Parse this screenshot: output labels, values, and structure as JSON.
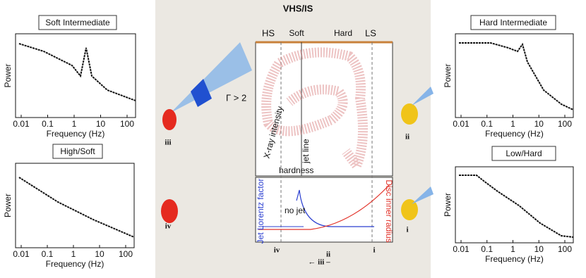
{
  "panels": [
    {
      "title": "Soft Intermediate",
      "y_label": "Power",
      "x_label": "Frequency (Hz)",
      "x_ticks": [
        "0.01",
        "0.1",
        "1",
        "10",
        "100"
      ]
    },
    {
      "title": "High/Soft",
      "y_label": "Power",
      "x_label": "Frequency (Hz)",
      "x_ticks": [
        "0.01",
        "0.1",
        "1",
        "10",
        "100"
      ]
    },
    {
      "title": "Hard Intermediate",
      "y_label": "Power",
      "x_label": "Frequency (Hz)",
      "x_ticks": [
        "0.01",
        "0.1",
        "1",
        "10",
        "100"
      ]
    },
    {
      "title": "Low/Hard",
      "y_label": "Power",
      "x_label": "Frequency (Hz)",
      "x_ticks": [
        "0.01",
        "0.1",
        "1",
        "10",
        "100"
      ]
    }
  ],
  "center": {
    "title": "VHS/IS",
    "states": [
      "HS",
      "Soft",
      "Hard",
      "LS"
    ],
    "gamma": "Γ > 2",
    "intensity": "X-ray intensity",
    "hardness": "hardness",
    "jet_line": "jet line",
    "no_jet": "no jet",
    "lorentz": "Jet Lorentz factor",
    "radius": "Disc inner radius",
    "disks": [
      "iii",
      "ii",
      "iv",
      "i"
    ],
    "bottom": [
      "iv",
      "ii",
      "i",
      "← iii –"
    ]
  }
}
